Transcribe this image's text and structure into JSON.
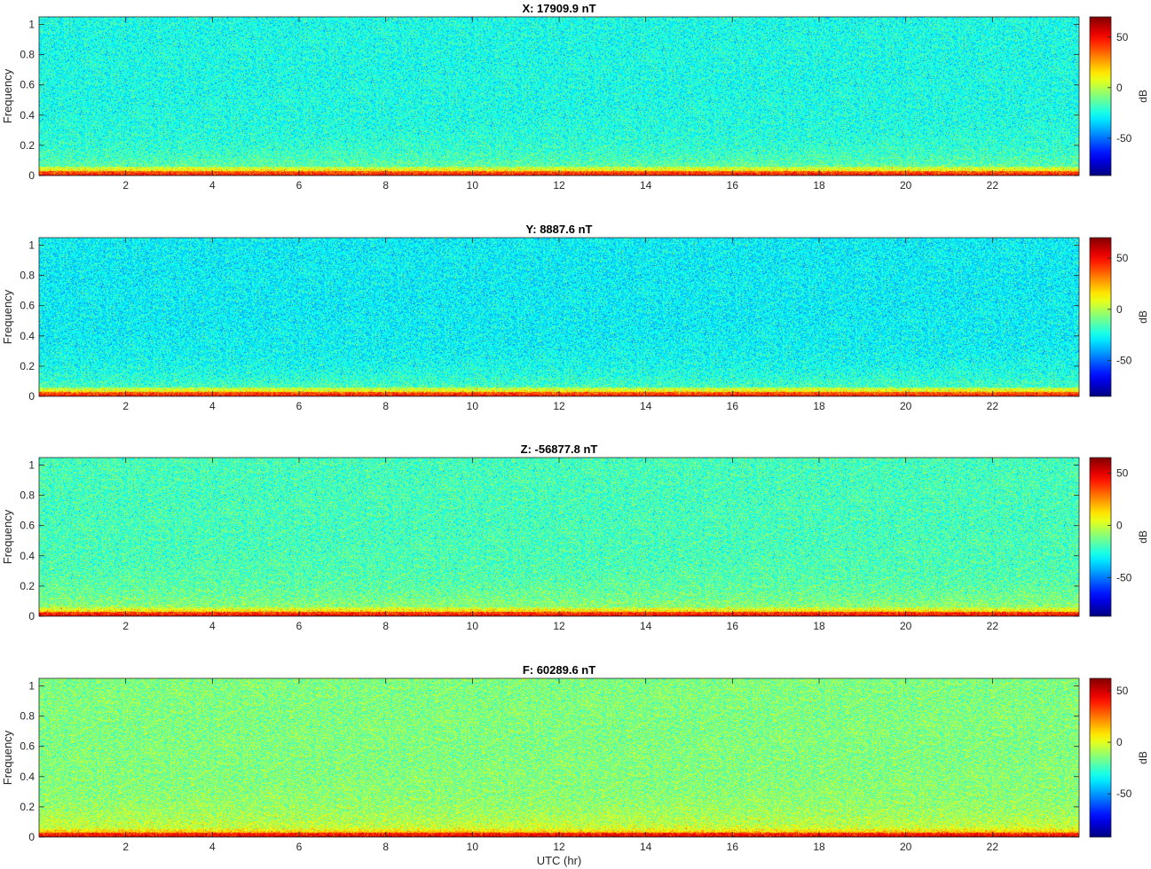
{
  "figure": {
    "xlabel_global": "UTC (hr)",
    "colormap": "jet"
  },
  "chart_data": [
    {
      "type": "heatmap",
      "title": "X: 17909.9 nT",
      "xlabel": "",
      "ylabel": "Frequency",
      "xlim": [
        0,
        24
      ],
      "ylim": [
        0,
        1.05
      ],
      "xticks": [
        2,
        4,
        6,
        8,
        10,
        12,
        14,
        16,
        18,
        20,
        22
      ],
      "xtick_labels": [
        "2",
        "4",
        "6",
        "8",
        "10",
        "12",
        "14",
        "16",
        "18",
        "20",
        "22"
      ],
      "yticks": [
        0,
        0.2,
        0.4,
        0.6,
        0.8,
        1
      ],
      "ytick_labels": [
        "0",
        "0.2",
        "0.4",
        "0.6",
        "0.8",
        "1"
      ],
      "colorbar": {
        "label": "dB",
        "range": [
          -87,
          70
        ],
        "ticks": [
          -50,
          0,
          50
        ],
        "tick_labels": [
          "-50",
          "0",
          "50"
        ]
      },
      "background_level_db": -25,
      "low_freq_level_db": 45
    },
    {
      "type": "heatmap",
      "title": "Y: 8887.6 nT",
      "xlabel": "",
      "ylabel": "Frequency",
      "xlim": [
        0,
        24
      ],
      "ylim": [
        0,
        1.05
      ],
      "xticks": [
        2,
        4,
        6,
        8,
        10,
        12,
        14,
        16,
        18,
        20,
        22
      ],
      "xtick_labels": [
        "2",
        "4",
        "6",
        "8",
        "10",
        "12",
        "14",
        "16",
        "18",
        "20",
        "22"
      ],
      "yticks": [
        0,
        0.2,
        0.4,
        0.6,
        0.8,
        1
      ],
      "ytick_labels": [
        "0",
        "0.2",
        "0.4",
        "0.6",
        "0.8",
        "1"
      ],
      "colorbar": {
        "label": "dB",
        "range": [
          -85,
          70
        ],
        "ticks": [
          -50,
          0,
          50
        ],
        "tick_labels": [
          "-50",
          "0",
          "50"
        ]
      },
      "background_level_db": -28,
      "low_freq_level_db": 45
    },
    {
      "type": "heatmap",
      "title": "Z: -56877.8 nT",
      "xlabel": "",
      "ylabel": "Frequency",
      "xlim": [
        0,
        24
      ],
      "ylim": [
        0,
        1.05
      ],
      "xticks": [
        2,
        4,
        6,
        8,
        10,
        12,
        14,
        16,
        18,
        20,
        22
      ],
      "xtick_labels": [
        "2",
        "4",
        "6",
        "8",
        "10",
        "12",
        "14",
        "16",
        "18",
        "20",
        "22"
      ],
      "yticks": [
        0,
        0.2,
        0.4,
        0.6,
        0.8,
        1
      ],
      "ytick_labels": [
        "0",
        "0.2",
        "0.4",
        "0.6",
        "0.8",
        "1"
      ],
      "colorbar": {
        "label": "dB",
        "range": [
          -87,
          65
        ],
        "ticks": [
          -50,
          0,
          50
        ],
        "tick_labels": [
          "-50",
          "0",
          "50"
        ]
      },
      "background_level_db": -20,
      "low_freq_level_db": 45
    },
    {
      "type": "heatmap",
      "title": "F: 60289.6 nT",
      "xlabel": "UTC (hr)",
      "ylabel": "Frequency",
      "xlim": [
        0,
        24
      ],
      "ylim": [
        0,
        1.05
      ],
      "xticks": [
        2,
        4,
        6,
        8,
        10,
        12,
        14,
        16,
        18,
        20,
        22
      ],
      "xtick_labels": [
        "2",
        "4",
        "6",
        "8",
        "10",
        "12",
        "14",
        "16",
        "18",
        "20",
        "22"
      ],
      "yticks": [
        0,
        0.2,
        0.4,
        0.6,
        0.8,
        1
      ],
      "ytick_labels": [
        "0",
        "0.2",
        "0.4",
        "0.6",
        "0.8",
        "1"
      ],
      "colorbar": {
        "label": "dB",
        "range": [
          -92,
          62
        ],
        "ticks": [
          -50,
          0,
          50
        ],
        "tick_labels": [
          "-50",
          "0",
          "50"
        ]
      },
      "background_level_db": -15,
      "low_freq_level_db": 45
    }
  ]
}
